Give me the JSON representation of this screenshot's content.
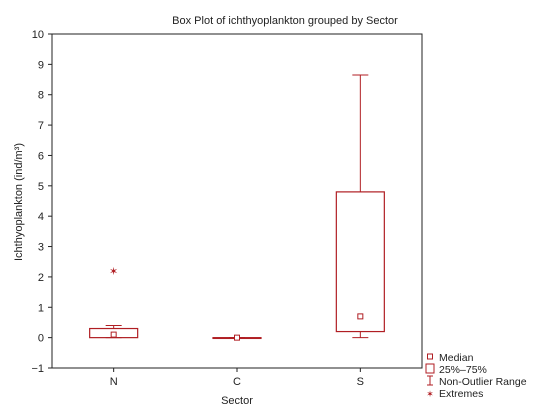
{
  "colors": {
    "box": "#b01e23",
    "axis": "#222222",
    "background": "#ffffff"
  },
  "chart_data": {
    "type": "box",
    "title": "Box Plot of ichthyoplankton grouped by  Sector",
    "xlabel": "Sector",
    "ylabel": "Ichthyoplankton (ind/m³)",
    "ylim": [
      -1,
      10
    ],
    "yticks": [
      -1,
      0,
      1,
      2,
      3,
      4,
      5,
      6,
      7,
      8,
      9,
      10
    ],
    "ytick_labels": [
      "−1",
      "0",
      "1",
      "2",
      "3",
      "4",
      "5",
      "6",
      "7",
      "8",
      "9",
      "10"
    ],
    "categories": [
      "N",
      "C",
      "S"
    ],
    "boxes": [
      {
        "category": "N",
        "min": 0.0,
        "q1": 0.0,
        "median": 0.1,
        "q3": 0.3,
        "max": 0.4,
        "extremes": [
          2.2
        ]
      },
      {
        "category": "C",
        "min": 0.0,
        "q1": 0.0,
        "median": 0.0,
        "q3": 0.0,
        "max": 0.0,
        "extremes": []
      },
      {
        "category": "S",
        "min": 0.0,
        "q1": 0.2,
        "median": 0.7,
        "q3": 4.8,
        "max": 8.65,
        "extremes": []
      }
    ],
    "legend": {
      "placement": "bottom-right",
      "entries": [
        {
          "label": "Median",
          "symbol": "square-marker"
        },
        {
          "label": "25%–75%",
          "symbol": "box"
        },
        {
          "label": "Non-Outlier Range",
          "symbol": "whisker"
        },
        {
          "label": "Extremes",
          "symbol": "star"
        }
      ]
    },
    "grid": false
  }
}
